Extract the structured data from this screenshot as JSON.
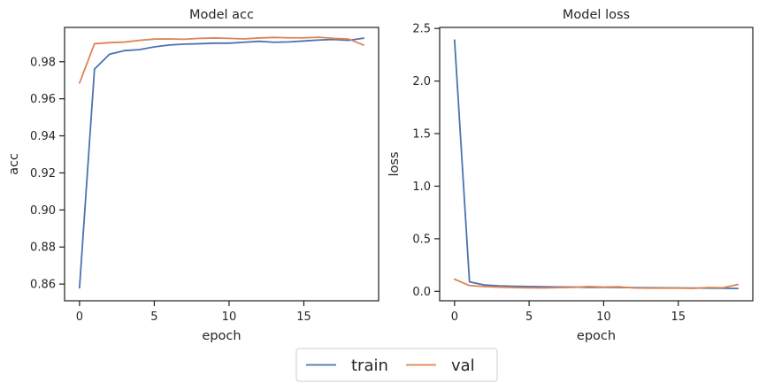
{
  "chart_data": [
    {
      "type": "line",
      "title": "Model acc",
      "xlabel": "epoch",
      "ylabel": "acc",
      "xlim": [
        -1,
        20
      ],
      "ylim": [
        0.851,
        0.9985
      ],
      "xticks": [
        0,
        5,
        10,
        15
      ],
      "yticks": [
        0.86,
        0.88,
        0.9,
        0.92,
        0.94,
        0.96,
        0.98
      ],
      "ytick_labels": [
        "0.86",
        "0.88",
        "0.90",
        "0.92",
        "0.94",
        "0.96",
        "0.98"
      ],
      "grid": false,
      "x": [
        0,
        1,
        2,
        3,
        4,
        5,
        6,
        7,
        8,
        9,
        10,
        11,
        12,
        13,
        14,
        15,
        16,
        17,
        18,
        19
      ],
      "series": [
        {
          "name": "train",
          "color": "#4c72b0",
          "values": [
            0.858,
            0.976,
            0.984,
            0.986,
            0.9865,
            0.988,
            0.989,
            0.9895,
            0.9897,
            0.99,
            0.99,
            0.9905,
            0.991,
            0.9905,
            0.9907,
            0.9912,
            0.9917,
            0.992,
            0.9915,
            0.9927
          ]
        },
        {
          "name": "val",
          "color": "#dd8452",
          "values": [
            0.9685,
            0.9897,
            0.9903,
            0.9906,
            0.9915,
            0.9922,
            0.9923,
            0.9921,
            0.9926,
            0.9928,
            0.9926,
            0.9923,
            0.9928,
            0.9931,
            0.9929,
            0.9929,
            0.9932,
            0.9926,
            0.9922,
            0.989
          ]
        }
      ]
    },
    {
      "type": "line",
      "title": "Model loss",
      "xlabel": "epoch",
      "ylabel": "loss",
      "xlim": [
        -1,
        20
      ],
      "ylim": [
        -0.09,
        2.51
      ],
      "xticks": [
        0,
        5,
        10,
        15
      ],
      "yticks": [
        0.0,
        0.5,
        1.0,
        1.5,
        2.0,
        2.5
      ],
      "ytick_labels": [
        "0.0",
        "0.5",
        "1.0",
        "1.5",
        "2.0",
        "2.5"
      ],
      "grid": false,
      "x": [
        0,
        1,
        2,
        3,
        4,
        5,
        6,
        7,
        8,
        9,
        10,
        11,
        12,
        13,
        14,
        15,
        16,
        17,
        18,
        19
      ],
      "series": [
        {
          "name": "train",
          "color": "#4c72b0",
          "values": [
            2.39,
            0.09,
            0.06,
            0.052,
            0.048,
            0.045,
            0.043,
            0.041,
            0.04,
            0.038,
            0.037,
            0.036,
            0.035,
            0.034,
            0.033,
            0.032,
            0.031,
            0.03,
            0.029,
            0.027
          ]
        },
        {
          "name": "val",
          "color": "#dd8452",
          "values": [
            0.115,
            0.055,
            0.045,
            0.04,
            0.035,
            0.033,
            0.032,
            0.035,
            0.037,
            0.046,
            0.04,
            0.043,
            0.032,
            0.03,
            0.03,
            0.03,
            0.028,
            0.036,
            0.034,
            0.065
          ]
        }
      ]
    }
  ],
  "legend": {
    "position": "bottom-center",
    "entries": [
      {
        "label": "train",
        "color": "#4c72b0"
      },
      {
        "label": "val",
        "color": "#dd8452"
      }
    ]
  }
}
